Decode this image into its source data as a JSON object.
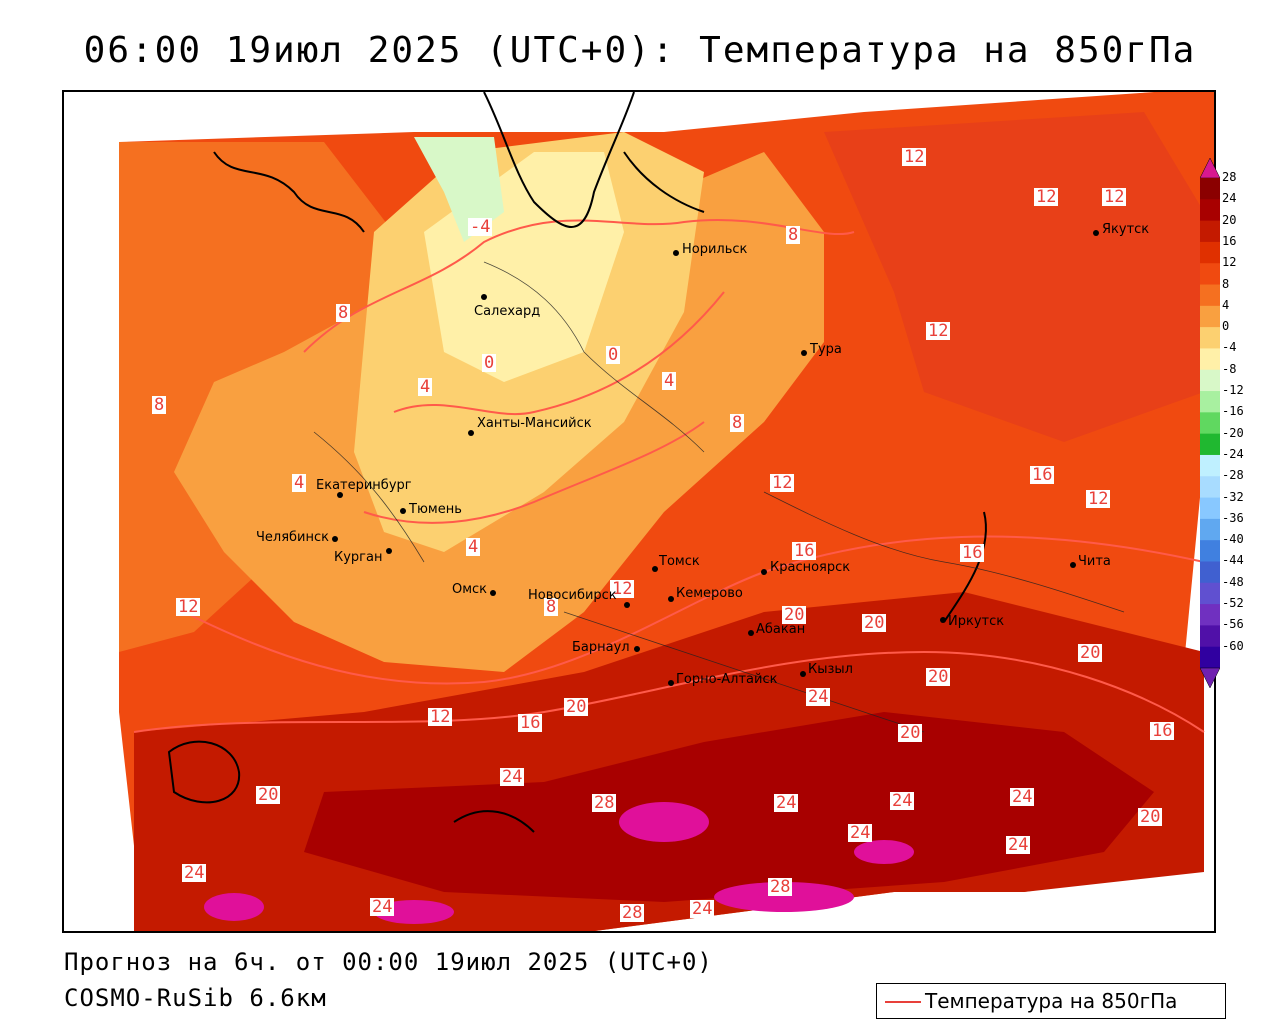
{
  "title": "06:00 19июл 2025 (UTC+0): Температура на 850гПа",
  "footer": {
    "forecast": "Прогноз на 6ч. от 00:00 19июл 2025 (UTC+0)",
    "model": "COSMO-RuSib 6.6км"
  },
  "legend": {
    "label": "Температура на 850гПа",
    "line_color": "#e8403a"
  },
  "colorbar": {
    "ticks": [
      "28",
      "24",
      "20",
      "16",
      "12",
      "8",
      "4",
      "0",
      "-4",
      "-8",
      "-12",
      "-16",
      "-20",
      "-24",
      "-28",
      "-32",
      "-36",
      "-40",
      "-44",
      "-48",
      "-52",
      "-56",
      "-60"
    ],
    "colors": [
      "#8b0000",
      "#a80000",
      "#c41a00",
      "#e03000",
      "#f04a10",
      "#f57020",
      "#f9a040",
      "#fcd070",
      "#fff0a8",
      "#d8f8c8",
      "#a8f0a0",
      "#60d860",
      "#20b830",
      "#bff0ff",
      "#a8dcff",
      "#88c8ff",
      "#60a8f0",
      "#4080e0",
      "#4060d0",
      "#6050d0",
      "#7030c0",
      "#5010a8",
      "#3000a0"
    ]
  },
  "cities": [
    {
      "name": "Норильск"
    },
    {
      "name": "Якутск"
    },
    {
      "name": "Салехард"
    },
    {
      "name": "Тура"
    },
    {
      "name": "Ханты-Мансийск"
    },
    {
      "name": "Екатеринбург"
    },
    {
      "name": "Тюмень"
    },
    {
      "name": "Челябинск"
    },
    {
      "name": "Курган"
    },
    {
      "name": "Омск"
    },
    {
      "name": "Новосибирск"
    },
    {
      "name": "Томск"
    },
    {
      "name": "Кемерово"
    },
    {
      "name": "Красноярск"
    },
    {
      "name": "Абакан"
    },
    {
      "name": "Барнаул"
    },
    {
      "name": "Горно-Алтайск"
    },
    {
      "name": "Кызыл"
    },
    {
      "name": "Иркутск"
    },
    {
      "name": "Чита"
    }
  ],
  "contour_labels": [
    "12",
    "12",
    "12",
    "12",
    "8",
    "8",
    "0",
    "0",
    "4",
    "4",
    "8",
    "4",
    "12",
    "16",
    "16",
    "16",
    "12",
    "12",
    "20",
    "20",
    "20",
    "20",
    "16",
    "12",
    "16",
    "20",
    "24",
    "24",
    "20",
    "20",
    "28",
    "24",
    "24",
    "24",
    "24",
    "20",
    "24",
    "28",
    "28",
    "24",
    "24",
    "24",
    "-4",
    "8",
    "4",
    "8",
    "12"
  ]
}
